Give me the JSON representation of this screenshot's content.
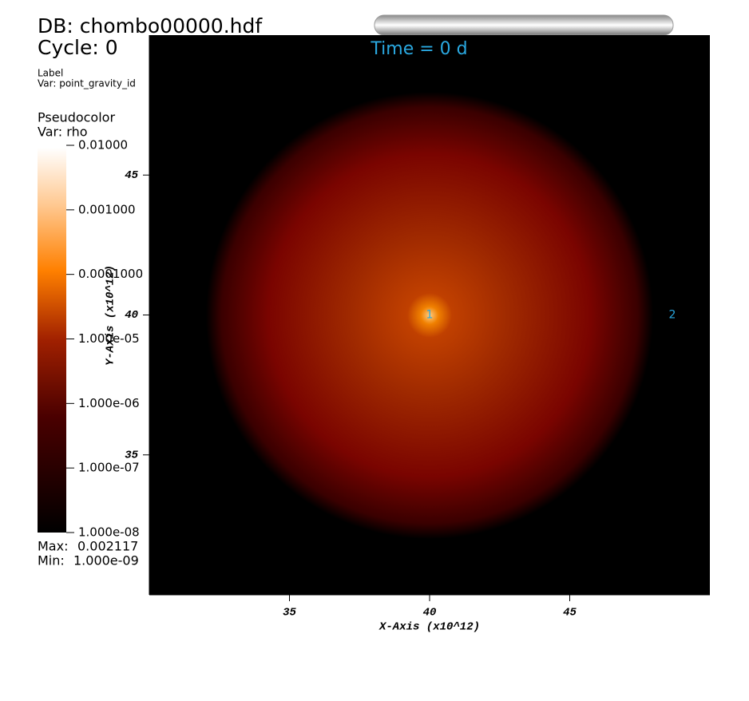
{
  "chart_data": {
    "type": "pseudocolor",
    "db_title": "DB: chombo00000.hdf",
    "cycle": "Cycle: 0",
    "label_plot": "Label",
    "label_var": "Var: point_gravity_id",
    "plot_name": "Pseudocolor",
    "plot_var": "Var: rho",
    "time": "Time = 0 d",
    "x_label": "X-Axis (x10^12)",
    "y_label": "Y-Axis (x10^12)",
    "xlim": [
      30,
      50
    ],
    "ylim": [
      30,
      50
    ],
    "xticks": [
      35,
      40,
      45
    ],
    "yticks": [
      35,
      40,
      45
    ],
    "clim": [
      1e-08,
      0.01
    ],
    "color_scale": "log",
    "cticks": [
      {
        "value": 0.01,
        "label": "0.01000"
      },
      {
        "value": 0.001,
        "label": "0.001000"
      },
      {
        "value": 0.0001,
        "label": "0.0001000"
      },
      {
        "value": 1e-05,
        "label": "1.000e-05"
      },
      {
        "value": 1e-06,
        "label": "1.000e-06"
      },
      {
        "value": 1e-07,
        "label": "1.000e-07"
      },
      {
        "value": 1e-08,
        "label": "1.000e-08"
      }
    ],
    "max_caption": "Max:",
    "max": 0.002117,
    "min_caption": "Min:",
    "min": {
      "value": 1e-09,
      "label": "1.000e-09"
    },
    "points": [
      {
        "label": "1",
        "x": 40,
        "y": 40
      },
      {
        "label": "2",
        "x": 48.66,
        "y": 40
      }
    ],
    "label_color": "#2aa8e0"
  }
}
